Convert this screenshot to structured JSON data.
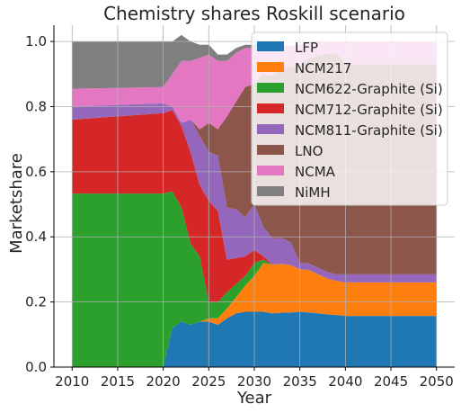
{
  "chart_data": {
    "type": "area",
    "title": "Chemistry shares Roskill scenario",
    "xlabel": "Year",
    "ylabel": "Marketshare",
    "xlim": [
      2008,
      2052
    ],
    "ylim": [
      0,
      1.05
    ],
    "xticks": [
      2010,
      2015,
      2020,
      2025,
      2030,
      2035,
      2040,
      2045,
      2050
    ],
    "yticks": [
      0.0,
      0.2,
      0.4,
      0.6,
      0.8,
      1.0
    ],
    "xtick_labels": [
      "2010",
      "2015",
      "2020",
      "2025",
      "2030",
      "2035",
      "2040",
      "2045",
      "2050"
    ],
    "ytick_labels": [
      "0.0",
      "0.2",
      "0.4",
      "0.6",
      "0.8",
      "1.0"
    ],
    "grid": true,
    "legend_position": "top-right",
    "stacked": true,
    "x": [
      2010,
      2020,
      2021,
      2022,
      2023,
      2024,
      2025,
      2026,
      2027,
      2028,
      2029,
      2030,
      2031,
      2032,
      2033,
      2034,
      2035,
      2036,
      2037,
      2038,
      2039,
      2040,
      2050
    ],
    "series": [
      {
        "name": "LFP",
        "color": "#1f77b4",
        "values": [
          0.0,
          0.0,
          0.12,
          0.14,
          0.13,
          0.14,
          0.14,
          0.13,
          0.15,
          0.165,
          0.17,
          0.17,
          0.17,
          0.165,
          0.167,
          0.168,
          0.17,
          0.168,
          0.165,
          0.162,
          0.16,
          0.157,
          0.157
        ]
      },
      {
        "name": "NCM217",
        "color": "#ff7f0e",
        "values": [
          0.0,
          0.0,
          0.0,
          0.0,
          0.0,
          0.0,
          0.01,
          0.02,
          0.03,
          0.05,
          0.08,
          0.11,
          0.15,
          0.15,
          0.15,
          0.145,
          0.13,
          0.13,
          0.12,
          0.11,
          0.105,
          0.103,
          0.103
        ]
      },
      {
        "name": "NCM622-Graphite (Si)",
        "color": "#2ca02c",
        "values": [
          0.533,
          0.533,
          0.42,
          0.35,
          0.25,
          0.2,
          0.05,
          0.05,
          0.05,
          0.04,
          0.03,
          0.04,
          0.01,
          0.0,
          0.0,
          0.0,
          0.0,
          0.0,
          0.0,
          0.0,
          0.0,
          0.0,
          0.0
        ]
      },
      {
        "name": "NCM712-Graphite (Si)",
        "color": "#d62728",
        "values": [
          0.227,
          0.247,
          0.25,
          0.25,
          0.28,
          0.22,
          0.31,
          0.28,
          0.1,
          0.08,
          0.06,
          0.04,
          0.01,
          0.0,
          0.0,
          0.0,
          0.0,
          0.0,
          0.0,
          0.0,
          0.0,
          0.0,
          0.0
        ]
      },
      {
        "name": "NCM811-Graphite (Si)",
        "color": "#9467bd",
        "values": [
          0.04,
          0.03,
          0.01,
          0.01,
          0.1,
          0.15,
          0.15,
          0.17,
          0.16,
          0.15,
          0.12,
          0.14,
          0.09,
          0.08,
          0.08,
          0.07,
          0.02,
          0.02,
          0.02,
          0.02,
          0.02,
          0.025,
          0.025
        ]
      },
      {
        "name": "LNO",
        "color": "#8c564b",
        "values": [
          0.0,
          0.0,
          0.0,
          0.0,
          0.0,
          0.02,
          0.09,
          0.08,
          0.28,
          0.33,
          0.4,
          0.37,
          0.47,
          0.5,
          0.52,
          0.54,
          0.61,
          0.63,
          0.65,
          0.67,
          0.68,
          0.645,
          0.645
        ]
      },
      {
        "name": "NCMA",
        "color": "#e377c2",
        "values": [
          0.055,
          0.05,
          0.1,
          0.19,
          0.18,
          0.22,
          0.21,
          0.21,
          0.17,
          0.15,
          0.12,
          0.11,
          0.09,
          0.085,
          0.068,
          0.065,
          0.06,
          0.052,
          0.045,
          0.038,
          0.035,
          0.07,
          0.07
        ]
      },
      {
        "name": "NiMH",
        "color": "#7f7f7f",
        "values": [
          0.145,
          0.14,
          0.1,
          0.08,
          0.06,
          0.04,
          0.03,
          0.02,
          0.02,
          0.015,
          0.01,
          0.01,
          0.005,
          0.005,
          0.0,
          0.0,
          0.0,
          0.0,
          0.0,
          0.0,
          0.0,
          0.0,
          0.0
        ]
      }
    ]
  }
}
